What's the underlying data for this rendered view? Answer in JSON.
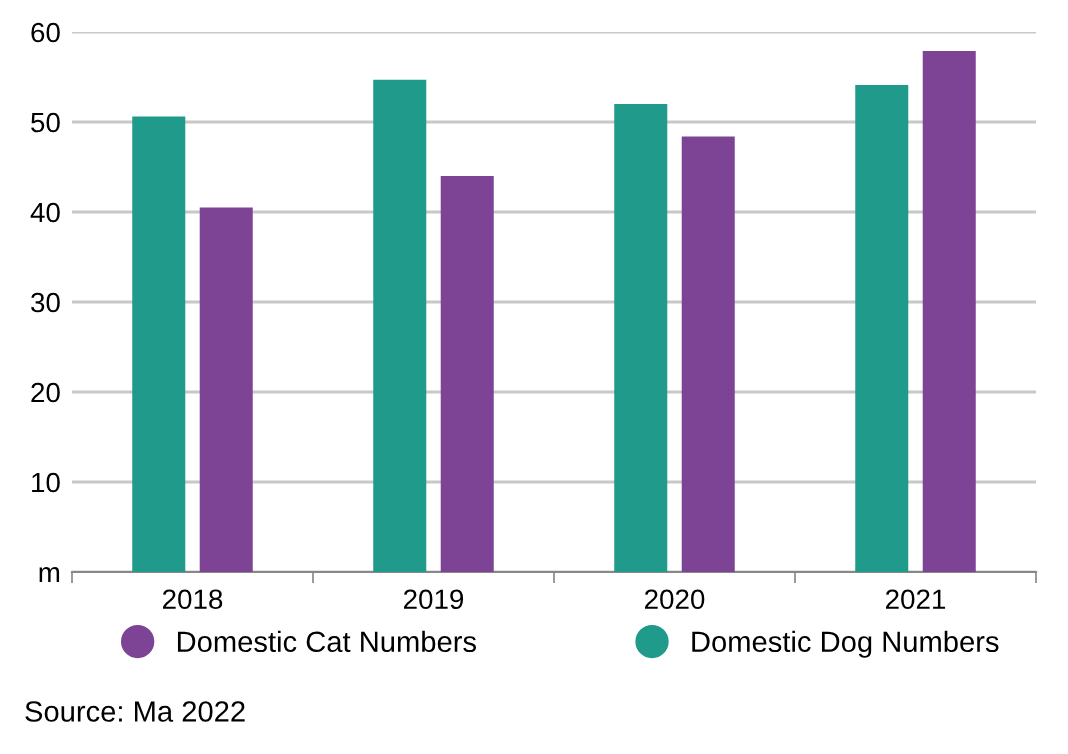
{
  "chart_data": {
    "type": "bar",
    "categories": [
      "2018",
      "2019",
      "2020",
      "2021"
    ],
    "series": [
      {
        "name": "Domestic Dog Numbers",
        "color": "#209a8a",
        "values": [
          50.6,
          54.7,
          52.0,
          54.1
        ]
      },
      {
        "name": "Domestic Cat Numbers",
        "color": "#7d4495",
        "values": [
          40.5,
          44.0,
          48.4,
          57.9
        ]
      }
    ],
    "ylim": [
      0,
      60
    ],
    "yticks": [
      {
        "value": 0,
        "label": "m"
      },
      10,
      20,
      30,
      40,
      50,
      60
    ],
    "grid": "y",
    "legend": "bottom",
    "annotations": [
      "Source: Ma 2022"
    ]
  }
}
